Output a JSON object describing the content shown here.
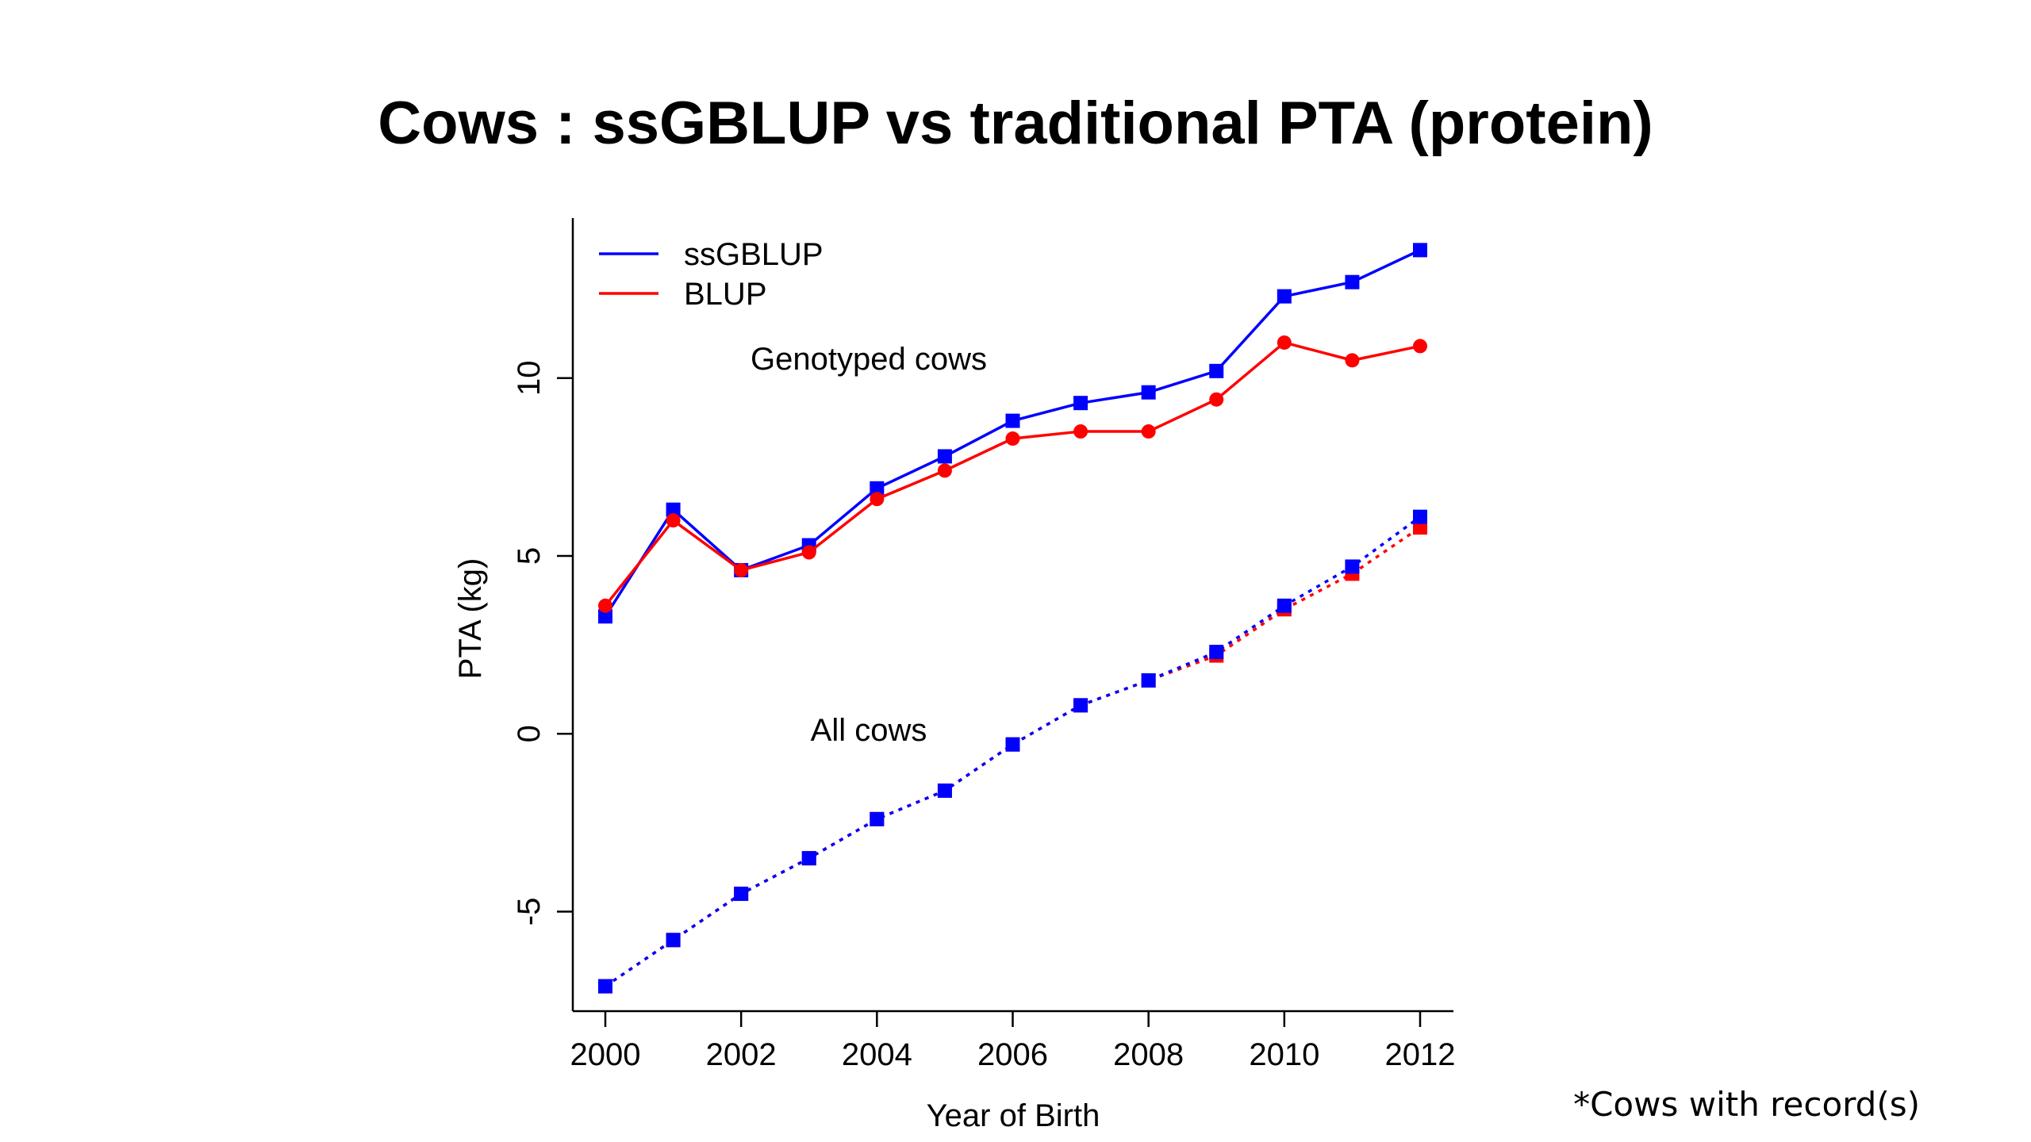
{
  "slide": {
    "title": "Cows : ssGBLUP vs traditional PTA (protein)",
    "footnote": "*Cows with record(s)"
  },
  "chart_data": {
    "type": "line",
    "title": "Cows : ssGBLUP vs traditional PTA (protein)",
    "xlabel": "Year of Birth",
    "ylabel": "PTA (kg)",
    "xlim": [
      2000,
      2012
    ],
    "ylim": [
      -7.8,
      14.5
    ],
    "x_ticks": [
      2000,
      2002,
      2004,
      2006,
      2008,
      2010,
      2012
    ],
    "y_ticks": [
      -5,
      0,
      5,
      10
    ],
    "grid": false,
    "legend": {
      "position": "top-left",
      "entries": [
        {
          "name": "ssGBLUP",
          "color": "#0000ff"
        },
        {
          "name": "BLUP",
          "color": "#ff0000"
        }
      ]
    },
    "annotations": [
      "Genotyped cows",
      "All cows"
    ],
    "x": [
      2000,
      2001,
      2002,
      2003,
      2004,
      2005,
      2006,
      2007,
      2008,
      2009,
      2010,
      2011,
      2012
    ],
    "series": [
      {
        "name": "ssGBLUP",
        "group": "Genotyped cows",
        "color": "#0000ff",
        "line": "solid",
        "marker": "square",
        "values": [
          3.3,
          6.3,
          4.6,
          5.3,
          6.9,
          7.8,
          8.8,
          9.3,
          9.6,
          10.2,
          12.3,
          12.7,
          13.6
        ]
      },
      {
        "name": "BLUP",
        "group": "Genotyped cows",
        "color": "#ff0000",
        "line": "solid",
        "marker": "circle",
        "values": [
          3.6,
          6.0,
          4.6,
          5.1,
          6.6,
          7.4,
          8.3,
          8.5,
          8.5,
          9.4,
          11.0,
          10.5,
          10.9
        ]
      },
      {
        "name": "BLUP",
        "group": "All cows",
        "color": "#ff0000",
        "line": "dotted",
        "marker": "square",
        "values": [
          -7.1,
          -5.8,
          -4.5,
          -3.5,
          -2.4,
          -1.6,
          -0.3,
          0.8,
          1.5,
          2.2,
          3.5,
          4.5,
          5.8
        ]
      },
      {
        "name": "ssGBLUP",
        "group": "All cows",
        "color": "#0000ff",
        "line": "dotted",
        "marker": "square",
        "values": [
          -7.1,
          -5.8,
          -4.5,
          -3.5,
          -2.4,
          -1.6,
          -0.3,
          0.8,
          1.5,
          2.3,
          3.6,
          4.7,
          6.1
        ]
      }
    ]
  }
}
